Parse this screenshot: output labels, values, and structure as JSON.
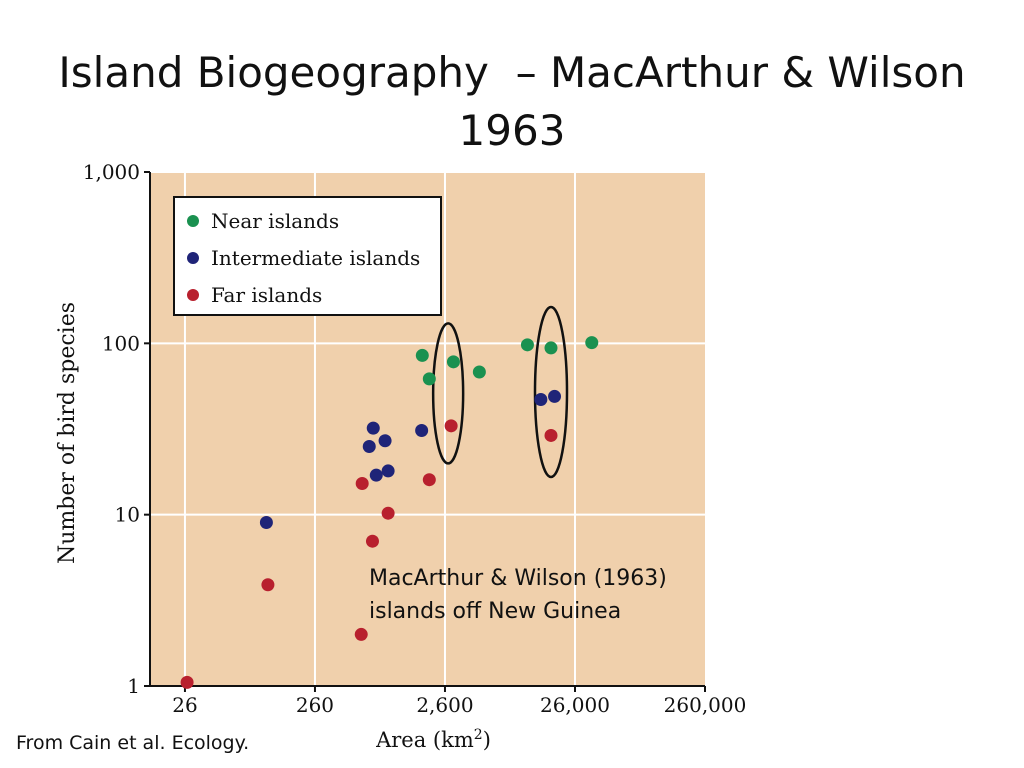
{
  "slide": {
    "title_line1": "Island Biogeography  – MacArthur & Wilson",
    "title_line2": "1963",
    "source_note": "From Cain et al. Ecology."
  },
  "chart_data": {
    "type": "scatter",
    "xscale": "log",
    "yscale": "log",
    "xlim": [
      14,
      260000
    ],
    "ylim": [
      1,
      1000
    ],
    "xticks": [
      26,
      260,
      2600,
      26000,
      260000
    ],
    "xtick_labels": [
      "26",
      "260",
      "2,600",
      "26,000",
      "260,000"
    ],
    "yticks": [
      1,
      10,
      100,
      1000
    ],
    "ytick_labels": [
      "1",
      "10",
      "100",
      "1,000"
    ],
    "xlabel": "Area (km",
    "xlabel_sup": "2",
    "xlabel_close": ")",
    "ylabel": "Number of bird species",
    "grid": true,
    "legend_position": "top-left",
    "background": "#f0d0ac",
    "annotation_line1": "MacArthur & Wilson (1963)",
    "annotation_line2": "islands off New Guinea",
    "series": [
      {
        "name": "Near islands",
        "color": "#1a9150",
        "points": [
          [
            1740,
            85
          ],
          [
            1970,
            62
          ],
          [
            3020,
            78
          ],
          [
            4780,
            68
          ],
          [
            11200,
            98
          ],
          [
            17000,
            94
          ],
          [
            35000,
            101
          ]
        ]
      },
      {
        "name": "Intermediate islands",
        "color": "#1f2478",
        "points": [
          [
            110,
            9
          ],
          [
            680,
            25
          ],
          [
            730,
            32
          ],
          [
            770,
            17
          ],
          [
            900,
            27
          ],
          [
            950,
            18
          ],
          [
            1720,
            31
          ],
          [
            14200,
            47
          ],
          [
            18100,
            49
          ]
        ]
      },
      {
        "name": "Far islands",
        "color": "#b8202e",
        "points": [
          [
            27,
            1.05
          ],
          [
            113,
            3.9
          ],
          [
            590,
            2
          ],
          [
            720,
            7
          ],
          [
            950,
            10.2
          ],
          [
            1970,
            16
          ],
          [
            2900,
            33
          ],
          [
            17000,
            29
          ],
          [
            600,
            15.2
          ]
        ]
      }
    ],
    "highlight_ellipses": [
      {
        "x": 2750,
        "y": 51
      },
      {
        "x": 17000,
        "y": 52
      }
    ]
  }
}
